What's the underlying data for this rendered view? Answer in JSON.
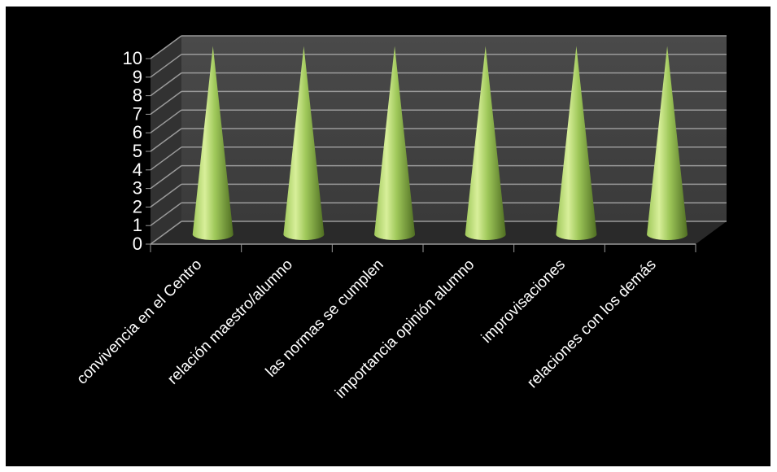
{
  "chart_data": {
    "type": "bar",
    "style": "3d-cone",
    "categories": [
      "convivencia en el Centro",
      "relación maestro/alumno",
      "las normas se cumplen",
      "importancia opinión alumno",
      "improvisaciones",
      "relaciones con los demás"
    ],
    "values": [
      10,
      10,
      10,
      10,
      10,
      10
    ],
    "ylim": [
      0,
      10
    ],
    "yticks": [
      "0",
      "1",
      "2",
      "3",
      "4",
      "5",
      "6",
      "7",
      "8",
      "9",
      "10"
    ],
    "grid": true,
    "legend": "none",
    "colors": {
      "background": "#000000",
      "wall": "#3a3a3a",
      "floor": "#2a2a2a",
      "gridline": "#9a9a9a",
      "cone_light": "#d8ef9a",
      "cone_mid": "#9fc85a",
      "cone_dark": "#4f6e22",
      "text": "#ffffff"
    }
  }
}
